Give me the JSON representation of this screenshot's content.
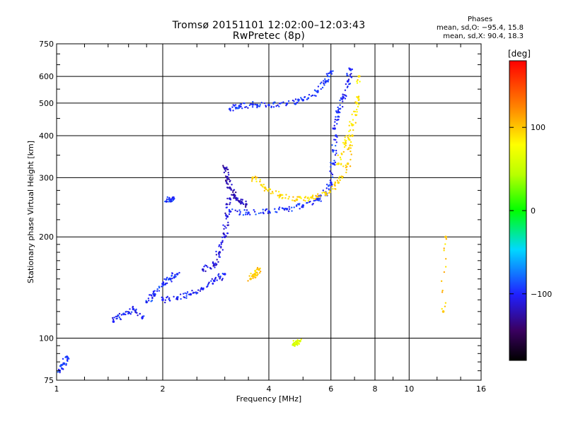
{
  "header": {
    "title_line1": "Tromsø 20151101 12:02:00–12:03:43",
    "title_line2": "RwPretec (8p)",
    "phases_label": "Phases",
    "stat_o": "mean, sd,O:  −95.4, 15.8",
    "stat_x": "mean, sd,X:  90.4, 18.3"
  },
  "colorbar": {
    "unit_label": "[deg]",
    "ticks": [
      {
        "value": 100,
        "label": "100"
      },
      {
        "value": 0,
        "label": "0"
      },
      {
        "value": -100,
        "label": "−100"
      }
    ],
    "range": [
      -180,
      180
    ]
  },
  "chart_data": {
    "type": "scatter",
    "xlabel": "Frequency [MHz]",
    "ylabel": "Stationary phase Virtual Height [km]",
    "x_scale": "log",
    "y_scale": "log",
    "xlim": [
      1,
      16
    ],
    "ylim": [
      75,
      750
    ],
    "x_ticks": [
      {
        "value": 1,
        "label": "1"
      },
      {
        "value": 2,
        "label": "2"
      },
      {
        "value": 4,
        "label": "4"
      },
      {
        "value": 6,
        "label": "6"
      },
      {
        "value": 8,
        "label": "8"
      },
      {
        "value": 10,
        "label": "10"
      },
      {
        "value": 16,
        "label": "16"
      }
    ],
    "y_ticks": [
      {
        "value": 75,
        "label": "75"
      },
      {
        "value": 100,
        "label": "100"
      },
      {
        "value": 200,
        "label": "200"
      },
      {
        "value": 300,
        "label": "300"
      },
      {
        "value": 400,
        "label": "400"
      },
      {
        "value": 500,
        "label": "500"
      },
      {
        "value": 600,
        "label": "600"
      },
      {
        "value": 750,
        "label": "750"
      }
    ],
    "grid": true,
    "color_variable": "phase (deg)",
    "traces": [
      {
        "x": [
          1.02,
          1.05,
          1.07
        ],
        "y": [
          80,
          84,
          88
        ],
        "phase": -95
      },
      {
        "x": [
          1.45,
          1.55,
          1.65,
          1.75
        ],
        "y": [
          112,
          118,
          122,
          115
        ],
        "phase": -100
      },
      {
        "x": [
          1.8,
          1.9,
          2.0,
          2.1,
          2.2
        ],
        "y": [
          128,
          135,
          145,
          150,
          155
        ],
        "phase": -95
      },
      {
        "x": [
          2.0,
          2.2,
          2.4,
          2.6,
          2.8,
          3.0
        ],
        "y": [
          130,
          132,
          135,
          140,
          148,
          155
        ],
        "phase": -100
      },
      {
        "x": [
          2.6,
          2.8,
          2.9,
          3.0,
          3.05,
          3.1
        ],
        "y": [
          160,
          165,
          180,
          200,
          230,
          260
        ],
        "phase": -110
      },
      {
        "x": [
          3.0,
          3.05,
          3.1,
          3.2,
          3.3,
          3.45
        ],
        "y": [
          320,
          300,
          280,
          265,
          255,
          250
        ],
        "phase": -120
      },
      {
        "x": [
          3.1,
          3.5,
          4.0,
          4.5,
          5.0,
          5.5,
          5.8,
          6.0,
          6.1,
          6.2
        ],
        "y": [
          238,
          236,
          238,
          242,
          248,
          258,
          270,
          290,
          330,
          400
        ],
        "phase": -95
      },
      {
        "x": [
          3.1,
          3.3,
          3.6,
          4.0,
          4.5,
          5.0,
          5.5,
          5.8,
          6.0
        ],
        "y": [
          480,
          490,
          495,
          493,
          498,
          510,
          540,
          580,
          620
        ],
        "phase": -95
      },
      {
        "x": [
          3.6,
          3.9,
          4.3,
          4.8,
          5.3,
          5.8,
          6.3,
          6.7,
          6.9
        ],
        "y": [
          300,
          280,
          265,
          258,
          262,
          270,
          290,
          330,
          400
        ],
        "phase": 95
      },
      {
        "x": [
          6.3,
          6.6,
          6.9,
          7.1,
          7.2
        ],
        "y": [
          330,
          380,
          430,
          500,
          600
        ],
        "phase": 90
      },
      {
        "x": [
          6.15,
          6.3,
          6.5,
          6.7,
          6.8
        ],
        "y": [
          420,
          470,
          520,
          580,
          630
        ],
        "phase": -100
      },
      {
        "x": [
          2.05,
          2.1,
          2.15
        ],
        "y": [
          255,
          258,
          260
        ],
        "phase": -95
      },
      {
        "x": [
          3.55,
          3.65,
          3.75
        ],
        "y": [
          150,
          155,
          160
        ],
        "phase": 100
      },
      {
        "x": [
          4.7,
          4.8,
          4.9
        ],
        "y": [
          96,
          97,
          98
        ],
        "phase": 60
      },
      {
        "x": [
          12.5,
          12.7
        ],
        "y": [
          120,
          200
        ],
        "phase": 100
      }
    ]
  }
}
